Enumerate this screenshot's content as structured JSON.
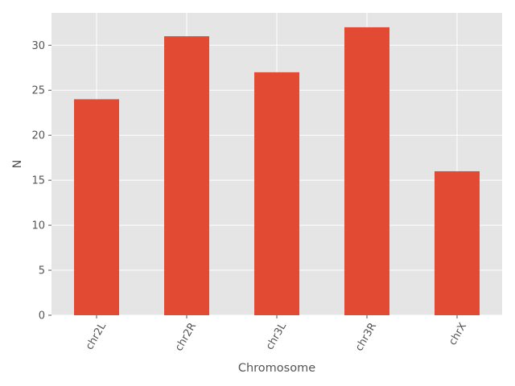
{
  "chart_data": {
    "type": "bar",
    "title": "",
    "xlabel": "Chromosome",
    "ylabel": "N",
    "categories": [
      "chr2L",
      "chr2R",
      "chr3L",
      "chr3R",
      "chrX"
    ],
    "values": [
      24,
      31,
      27,
      32,
      16
    ],
    "ylim": [
      0,
      33.6
    ],
    "yticks": [
      0,
      5,
      10,
      15,
      20,
      25,
      30
    ],
    "x_tick_rotation_deg": 60,
    "grid": true,
    "legend": "none",
    "colors": {
      "bar": "#E24A33",
      "plot_background": "#E5E5E5",
      "grid": "#FFFFFF",
      "text": "#555555"
    }
  }
}
